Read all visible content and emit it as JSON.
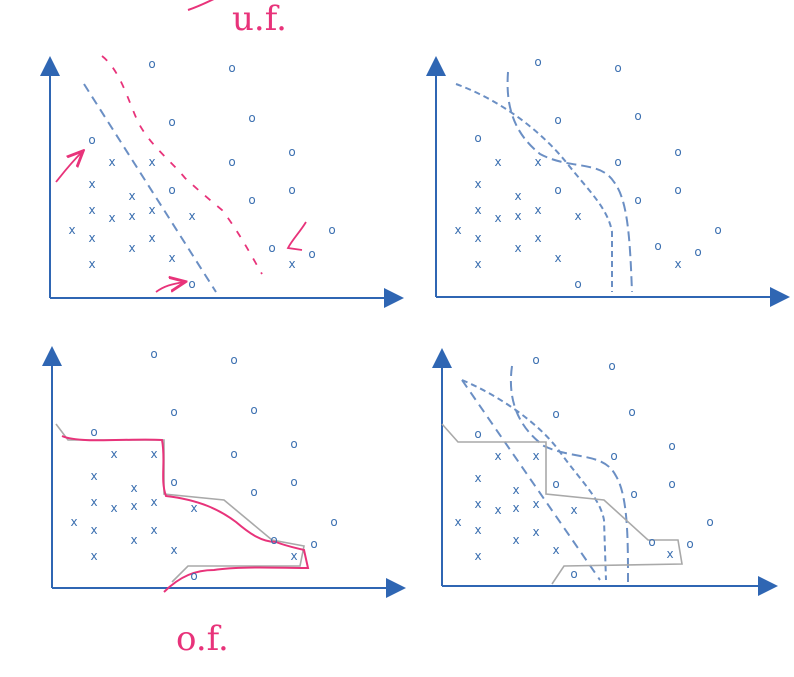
{
  "colors": {
    "axis": "#2f66b3",
    "points": "#3b6fb0",
    "boundary": "#6b8fc4",
    "overfit_line": "#a9a9a9",
    "annotation": "#e8337a"
  },
  "annotations": {
    "top_label": "u.f.",
    "bottom_label": "o.f."
  },
  "markers": {
    "circle": "o",
    "cross": "x"
  },
  "panels": [
    {
      "id": "linear-boundary"
    },
    {
      "id": "curved-boundary"
    },
    {
      "id": "overfit-boundary"
    },
    {
      "id": "combined-boundaries"
    }
  ]
}
